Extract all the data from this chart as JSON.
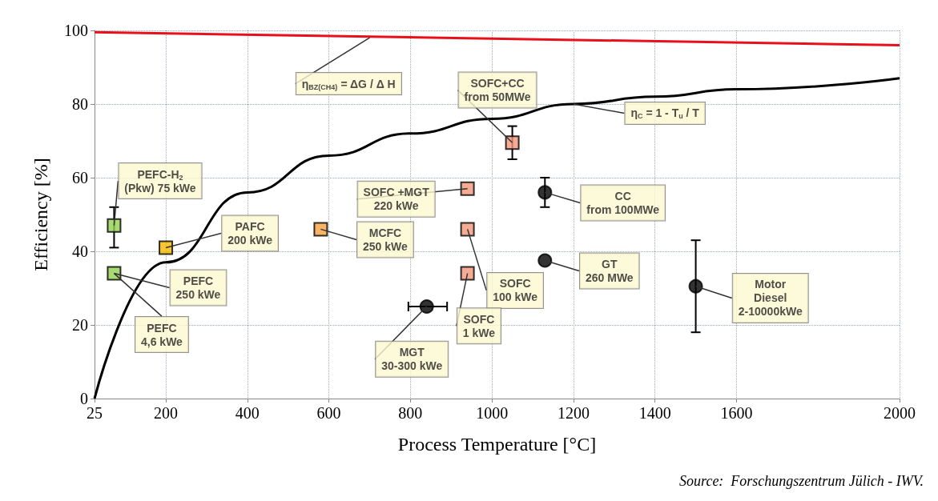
{
  "chart_data": {
    "type": "scatter",
    "xlabel": "Process Temperature [°C]",
    "ylabel": "Efficiency [%]",
    "xlim": [
      25,
      2000
    ],
    "xticks": [
      25,
      200,
      400,
      600,
      800,
      1000,
      1200,
      1400,
      1600,
      2000
    ],
    "ylim": [
      0,
      100
    ],
    "yticks": [
      0,
      20,
      40,
      60,
      80,
      100
    ],
    "grid": true,
    "series": [
      {
        "type": "line",
        "color": "#e8101a",
        "x": [
          25,
          2000
        ],
        "values": [
          99.5,
          96
        ]
      },
      {
        "type": "line",
        "color": "#000000",
        "x": [
          25,
          200,
          400,
          600,
          800,
          1000,
          1200,
          1400,
          1600,
          2000
        ],
        "values": [
          0,
          37,
          56,
          66,
          72,
          76,
          80,
          82,
          84,
          87
        ]
      },
      {
        "marker": "square",
        "x": [
          73,
          73,
          200,
          580,
          1050,
          940,
          940,
          940
        ],
        "values": [
          47,
          34,
          41,
          46,
          69.5,
          57,
          46,
          34
        ],
        "errors": [
          [
            41,
            52
          ],
          null,
          null,
          null,
          [
            65,
            74
          ],
          null,
          null,
          null
        ],
        "colors": [
          "#92d050",
          "#92d050",
          "#f5b800",
          "#f5a040",
          "#f4967a",
          "#f4967a",
          "#f4967a",
          "#f4967a"
        ]
      },
      {
        "marker": "circle",
        "color": "#000000",
        "x": [
          1130,
          1130,
          840,
          1500
        ],
        "values": [
          56,
          37.5,
          25,
          30.5
        ],
        "errors": [
          [
            52,
            60
          ],
          null,
          null,
          [
            18,
            43
          ]
        ],
        "xerrors": [
          null,
          null,
          [
            795,
            890
          ],
          null
        ]
      }
    ],
    "annotations": [
      {
        "text": "PEFC-H$_{2}$\n(Pkw) 75 kWe",
        "x": 73,
        "y": 47
      },
      {
        "text": "PEFC\n250 kWe",
        "x": 73,
        "y": 34
      },
      {
        "text": "PEFC\n4,6 kWe",
        "x": 73,
        "y": 34
      },
      {
        "text": "PAFC\n200 kWe",
        "x": 200,
        "y": 41
      },
      {
        "text": "MCFC\n250 kWe",
        "x": 580,
        "y": 46
      },
      {
        "text": "SOFC+CC\nfrom 50MWe",
        "x": 1050,
        "y": 69.5
      },
      {
        "text": "SOFC +MGT\n220 kWe",
        "x": 940,
        "y": 57
      },
      {
        "text": "SOFC\n100 kWe",
        "x": 940,
        "y": 46
      },
      {
        "text": "SOFC\n1 kWe",
        "x": 940,
        "y": 34
      },
      {
        "text": "CC\nfrom 100MWe",
        "x": 1130,
        "y": 56
      },
      {
        "text": "GT\n260 MWe",
        "x": 1130,
        "y": 37.5
      },
      {
        "text": "MGT\n30-300 kWe",
        "x": 840,
        "y": 25
      },
      {
        "text": "Motor\nDiesel\n2-10000kWe",
        "x": 1500,
        "y": 30.5
      },
      {
        "text": "η$_{BZ(CH4)}$ = ΔG / Δ H",
        "x": 700,
        "y": 98
      },
      {
        "text": "η$_{C}$ = 1 - T$_{u}$ / T",
        "x": 1200,
        "y": 80
      },
      "Source:  Forschungszentrum Jülich - IWV."
    ]
  }
}
